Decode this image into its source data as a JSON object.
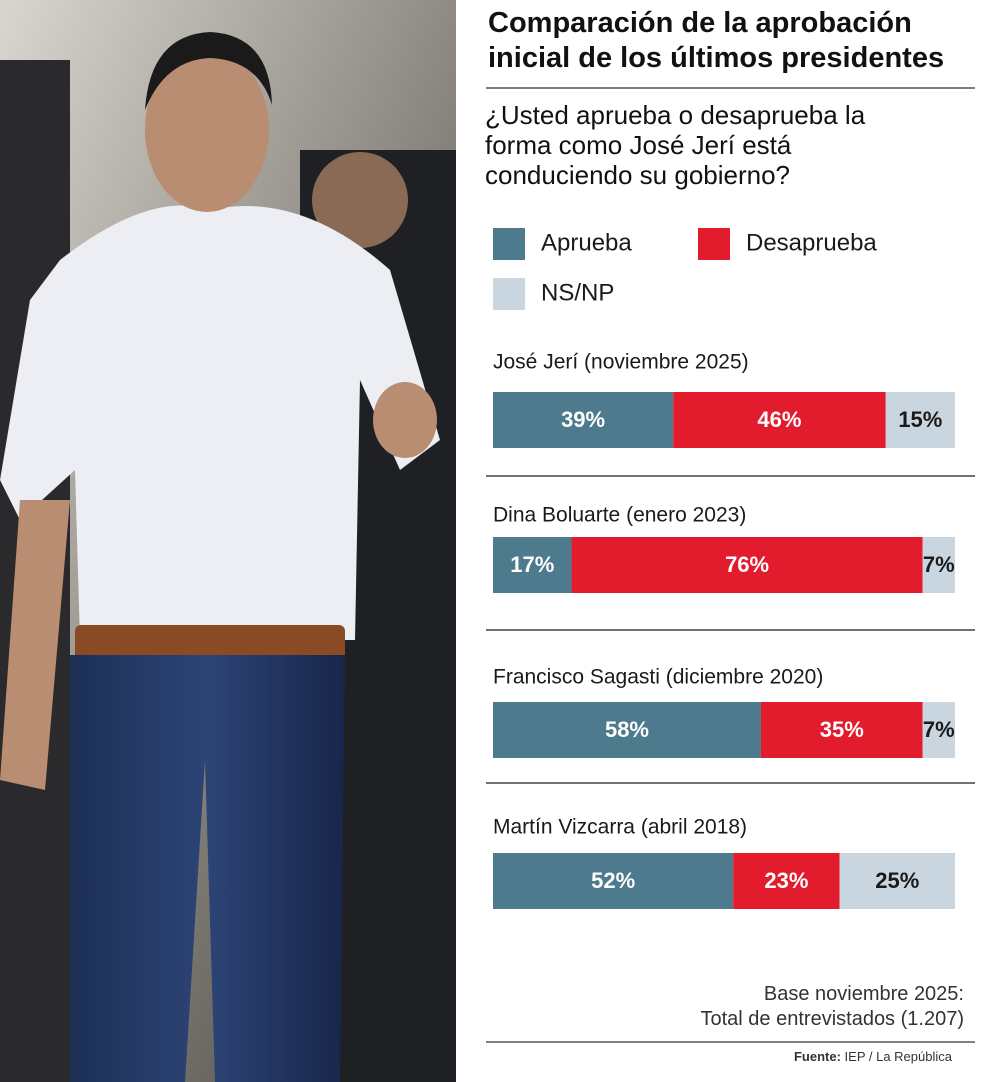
{
  "chart_data": {
    "type": "stacked-bar",
    "orientation": "horizontal",
    "title": "Comparación de la aprobación inicial de los últimos presidentes",
    "subtitle": "¿Usted aprueba o desaprueba la forma como José Jerí está conduciendo su gobierno?",
    "categories": [
      "José Jerí (noviembre 2025)",
      "Dina Boluarte (enero 2023)",
      "Francisco Sagasti (diciembre 2020)",
      "Martín Vizcarra (abril 2018)"
    ],
    "series": [
      {
        "name": "Aprueba",
        "color": "#4e7a8e",
        "label_color": "#ffffff",
        "values": [
          39,
          17,
          58,
          52
        ],
        "value_labels": [
          "39%",
          "17%",
          "58%",
          "52%"
        ]
      },
      {
        "name": "Desaprueba",
        "color": "#e21b2d",
        "label_color": "#ffffff",
        "values": [
          46,
          76,
          35,
          23
        ],
        "value_labels": [
          "46%",
          "76%",
          "35%",
          "23%"
        ]
      },
      {
        "name": "NS/NP",
        "color": "#cad6df",
        "label_color": "#1a1a1a",
        "values": [
          15,
          7,
          7,
          25
        ],
        "value_labels": [
          "15%",
          "7%",
          "7%",
          "25%"
        ]
      }
    ],
    "note": [
      "Base noviembre 2025:",
      "Total de entrevistados (1.207)"
    ],
    "source_label": "Fuente:",
    "source": "IEP / La República"
  }
}
